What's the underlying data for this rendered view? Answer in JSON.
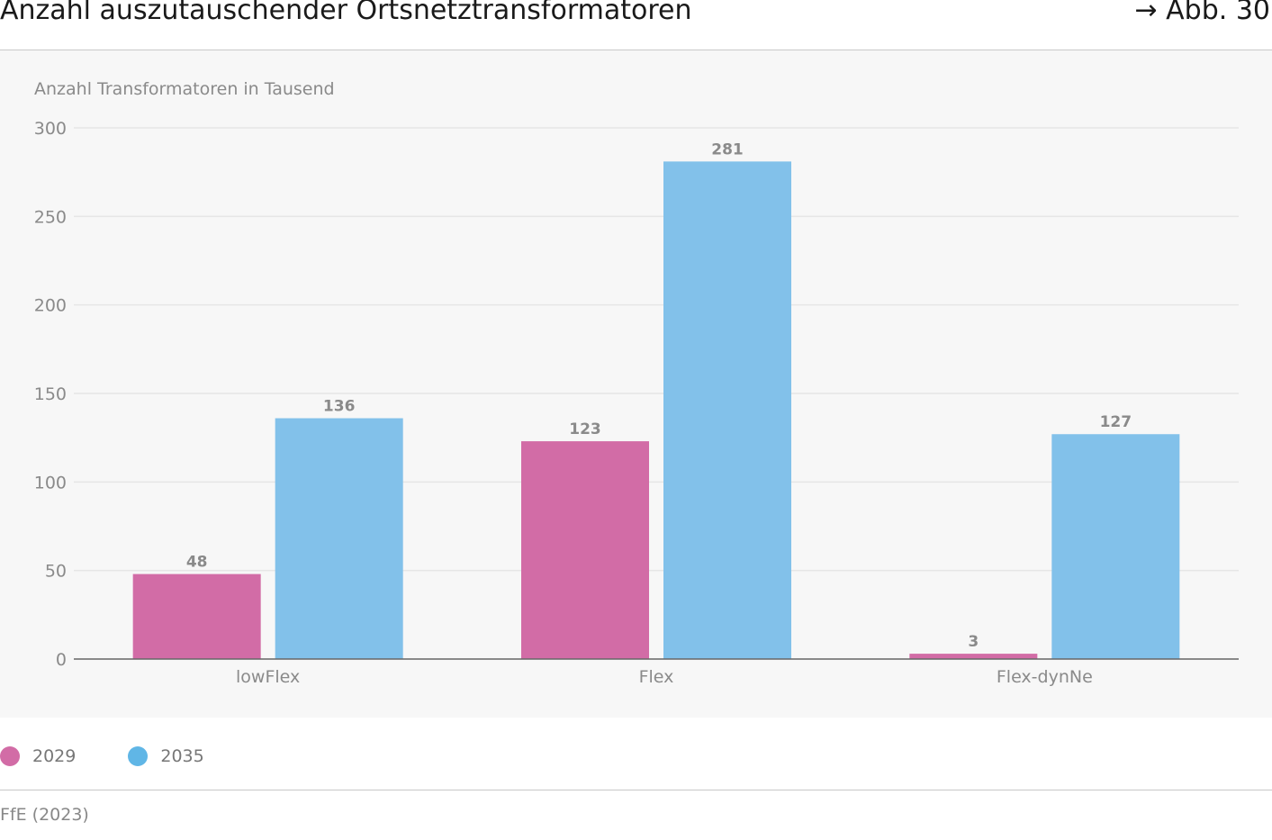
{
  "header": {
    "title": "Anzahl auszutauschender Ortsnetztransformatoren",
    "figure_ref": "→ Abb. 30"
  },
  "footer": {
    "source": "FfE (2023)"
  },
  "chart_data": {
    "type": "bar",
    "title": "Anzahl auszutauschender Ortsnetztransformatoren",
    "ylabel": "Anzahl Transformatoren in Tausend",
    "xlabel": "",
    "categories": [
      "lowFlex",
      "Flex",
      "Flex-dynNe"
    ],
    "series": [
      {
        "name": "2029",
        "values": [
          48,
          123,
          3
        ],
        "color": "#d26ca6"
      },
      {
        "name": "2035",
        "values": [
          136,
          281,
          127
        ],
        "color": "#82c1ea"
      }
    ],
    "ylim": [
      0,
      300
    ],
    "yticks": [
      0,
      50,
      100,
      150,
      200,
      250,
      300
    ],
    "grid": true,
    "legend_position": "bottom-left",
    "data_labels": true
  },
  "legend": {
    "items": [
      {
        "label": "2029",
        "color": "#d26ca6"
      },
      {
        "label": "2035",
        "color": "#60b6e6"
      }
    ]
  }
}
